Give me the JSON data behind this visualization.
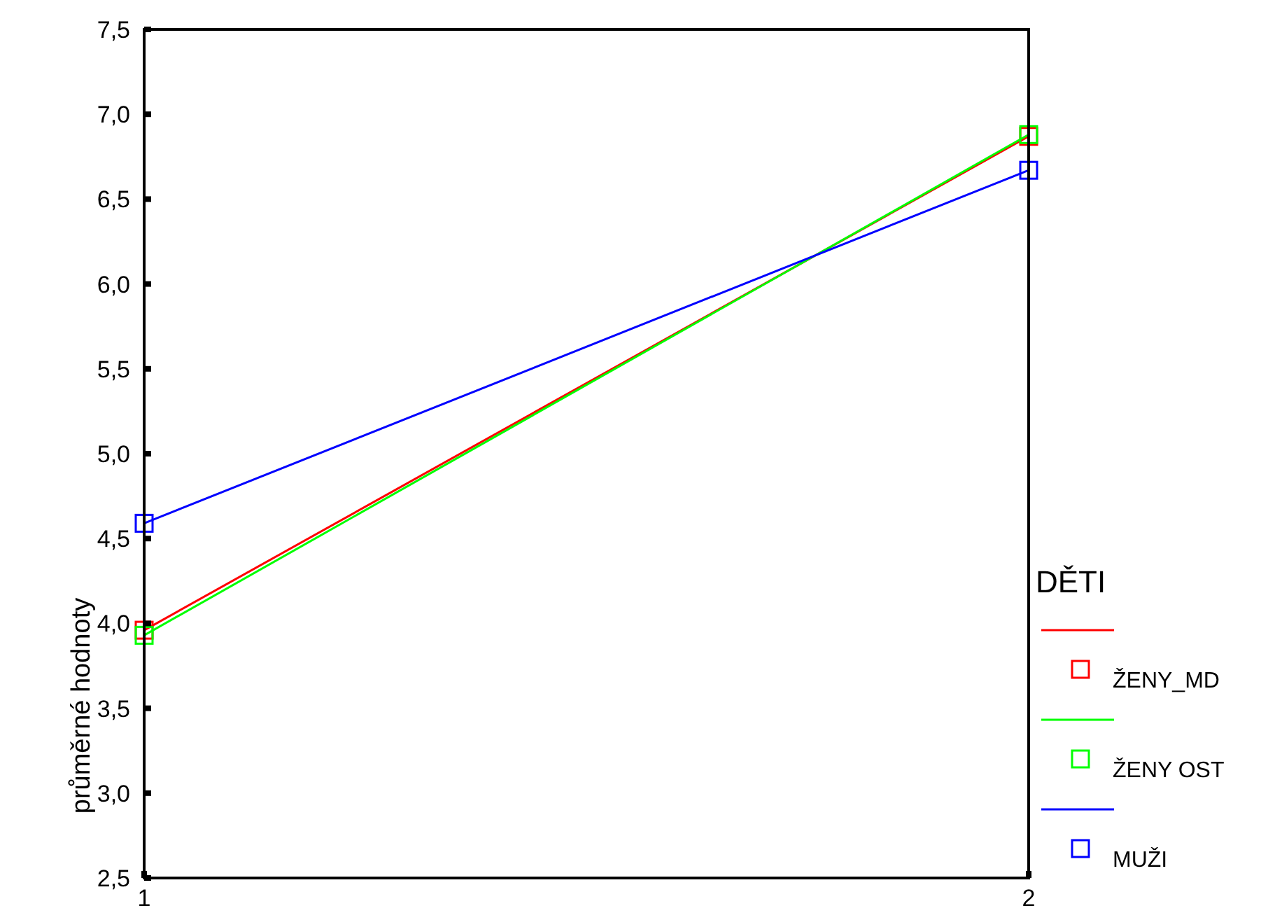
{
  "chart_data": {
    "type": "line",
    "ylabel": "průměrné hodnoty",
    "legend_title": "DĚTI",
    "x": [
      1,
      2
    ],
    "series": [
      {
        "name": "ŽENY_MD",
        "color": "#ff0000",
        "values": [
          3.96,
          6.87
        ]
      },
      {
        "name": "ŽENY OST",
        "color": "#00ff00",
        "values": [
          3.93,
          6.88
        ]
      },
      {
        "name": "MUŽI",
        "color": "#0000ff",
        "values": [
          4.59,
          6.67
        ]
      }
    ],
    "xlim": [
      1,
      2
    ],
    "xticks": [
      1,
      2
    ],
    "ylim": [
      2.5,
      7.5
    ],
    "yticks": [
      {
        "value": 2.5,
        "label": "2,5"
      },
      {
        "value": 3.0,
        "label": "3,0"
      },
      {
        "value": 3.5,
        "label": "3,5"
      },
      {
        "value": 4.0,
        "label": "4,0"
      },
      {
        "value": 4.5,
        "label": "4,5"
      },
      {
        "value": 5.0,
        "label": "5,0"
      },
      {
        "value": 5.5,
        "label": "5,5"
      },
      {
        "value": 6.0,
        "label": "6,0"
      },
      {
        "value": 6.5,
        "label": "6,5"
      },
      {
        "value": 7.0,
        "label": "7,0"
      },
      {
        "value": 7.5,
        "label": "7,5"
      }
    ],
    "legend": "right",
    "marker": "square",
    "line_style": "solid",
    "grid": false
  }
}
